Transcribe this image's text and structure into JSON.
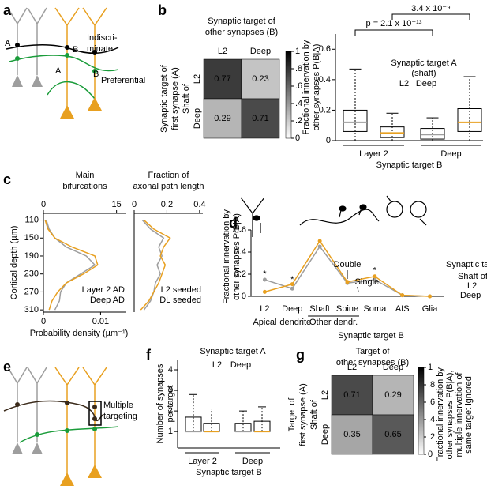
{
  "a": {
    "label": "a",
    "texts": [
      "A",
      "B",
      "Indiscri-",
      "minate",
      "A",
      "B",
      "Preferential"
    ]
  },
  "b": {
    "label": "b",
    "heatmap": {
      "type": "heatmap",
      "title": [
        "Synaptic target of",
        "other synapses (B)"
      ],
      "columns": [
        "L2",
        "Deep"
      ],
      "rows": [
        "L2",
        "Deep"
      ],
      "ylabel": [
        "Synaptic target of",
        "first synapse (A)",
        "Shaft of"
      ],
      "values": [
        [
          0.77,
          0.23
        ],
        [
          0.29,
          0.71
        ]
      ],
      "clim": [
        0,
        1
      ],
      "cticks": [
        0,
        {
          "value": 0.2,
          "label": ".2"
        },
        {
          "value": 0.4,
          "label": ".4"
        },
        {
          "value": 0.6,
          "label": ".6"
        },
        {
          "value": 0.8,
          "label": ".8"
        },
        1
      ]
    },
    "box": {
      "type": "box",
      "ylabel": [
        "Fractional innervation by",
        "other synapses P(B|A)"
      ],
      "xlabel": "Synaptic target B",
      "categories": [
        "Layer 2",
        "Deep"
      ],
      "legend_title": [
        "Synaptic target A",
        "(shaft)"
      ],
      "ylim": [
        0,
        0.7
      ],
      "yticks": [
        0,
        0.2,
        0.4,
        0.6
      ],
      "series": [
        {
          "name": "L2",
          "color": "#9e9e9e",
          "boxes": [
            {
              "low": 0,
              "q1": 0.06,
              "median": 0.12,
              "q3": 0.2,
              "high": 0.47
            },
            {
              "low": 0,
              "q1": 0.01,
              "median": 0.04,
              "q3": 0.08,
              "high": 0.15
            }
          ]
        },
        {
          "name": "Deep",
          "color": "#e8a020",
          "boxes": [
            {
              "low": 0,
              "q1": 0.02,
              "median": 0.05,
              "q3": 0.09,
              "high": 0.18
            },
            {
              "low": 0,
              "q1": 0.06,
              "median": 0.12,
              "q3": 0.21,
              "high": 0.42
            }
          ]
        }
      ],
      "annotations": [
        "p = 2.1 x 10⁻¹³",
        "3.4 x 10⁻⁹"
      ]
    }
  },
  "c": {
    "label": "c",
    "ylabel": "Cortical depth (µm)",
    "ylim": [
      95,
      315
    ],
    "yticks": [
      110,
      150,
      190,
      230,
      270,
      310
    ],
    "depths": [
      110,
      130,
      150,
      170,
      190,
      210,
      230,
      250,
      270,
      290,
      310
    ],
    "left": {
      "type": "line",
      "title": [
        "Main",
        "bifurcations"
      ],
      "xlabel": "Probability density (µm⁻¹)",
      "xlim": [
        0,
        0.0145
      ],
      "xticks": [
        0,
        0.01
      ],
      "x2lim": [
        0,
        17
      ],
      "x2ticks": [
        0,
        15
      ],
      "series": [
        {
          "name": "Layer 2 AD",
          "color": "#9e9e9e",
          "values": [
            0.0005,
            0.001,
            0.002,
            0.004,
            0.0075,
            0.009,
            0.0065,
            0.004,
            0.003,
            0.0028,
            0.002
          ]
        },
        {
          "name": "Deep AD",
          "color": "#e8a020",
          "values": [
            0.0003,
            0.0008,
            0.002,
            0.005,
            0.009,
            0.0095,
            0.007,
            0.004,
            0.0025,
            0.0015,
            0.001
          ]
        }
      ]
    },
    "right": {
      "type": "line",
      "title": [
        "Fraction of",
        "axonal path length"
      ],
      "xlim": [
        0,
        0.42
      ],
      "xticks": [
        0,
        0.2,
        0.4
      ],
      "series": [
        {
          "name": "L2 seeded",
          "color": "#9e9e9e",
          "values": [
            0.05,
            0.1,
            0.18,
            0.15,
            0.17,
            0.14,
            0.16,
            0.13,
            0.12,
            0.1,
            0.06
          ]
        },
        {
          "name": "DL seeded",
          "color": "#e8a020",
          "values": [
            0.06,
            0.12,
            0.22,
            0.18,
            0.16,
            0.19,
            0.17,
            0.15,
            0.12,
            0.09,
            0.04
          ]
        }
      ]
    }
  },
  "d": {
    "label": "d",
    "type": "line",
    "ylabel": [
      "Fractional innervation by",
      "other synapses P(B|A)"
    ],
    "xlabel": "Synaptic target B",
    "categories": [
      "L2",
      "Deep",
      "Shaft",
      "Spine",
      "Soma",
      "AIS",
      "Glia"
    ],
    "groups": [
      "Apical",
      "dendrite",
      "Other dendr."
    ],
    "ylim": [
      0,
      0.6
    ],
    "yticks": [
      0,
      0.2,
      0.4,
      0.6
    ],
    "annotations": [
      "Double",
      "Single",
      "*",
      "*",
      "*"
    ],
    "legend_title": [
      "Synaptic target (A):",
      "Shaft of"
    ],
    "series": [
      {
        "name": "L2",
        "color": "#9e9e9e",
        "values": [
          0.15,
          0.07,
          0.45,
          0.12,
          0.15,
          0.01,
          0
        ]
      },
      {
        "name": "Deep",
        "color": "#e8a020",
        "values": [
          0.04,
          0.11,
          0.5,
          0.13,
          0.18,
          0.01,
          0
        ]
      }
    ]
  },
  "e": {
    "label": "e",
    "texts": [
      "Multiple",
      "targeting"
    ]
  },
  "f": {
    "label": "f",
    "type": "box",
    "ylabel": [
      "Number of synapses",
      "per target"
    ],
    "xlabel": "Synaptic target B",
    "categories": [
      "Layer 2",
      "Deep"
    ],
    "legend_title": [
      "Synaptic target A"
    ],
    "ylim": [
      0.2,
      4.5
    ],
    "yticks": [
      1,
      2,
      3,
      4
    ],
    "series": [
      {
        "name": "L2",
        "color": "#9e9e9e",
        "boxes": [
          {
            "low": 1,
            "q1": 1,
            "median": 1,
            "q3": 1.7,
            "high": 2.8
          },
          {
            "low": 1,
            "q1": 1,
            "median": 1,
            "q3": 1.4,
            "high": 2
          }
        ]
      },
      {
        "name": "Deep",
        "color": "#e8a020",
        "boxes": [
          {
            "low": 1,
            "q1": 1,
            "median": 1,
            "q3": 1.4,
            "high": 2.1
          },
          {
            "low": 1,
            "q1": 1,
            "median": 1,
            "q3": 1.5,
            "high": 2.2
          }
        ]
      }
    ]
  },
  "g": {
    "label": "g",
    "type": "heatmap",
    "title": [
      "Target of",
      "other synapses (B)"
    ],
    "columns": [
      "L2",
      "Deep"
    ],
    "rows": [
      "L2",
      "Deep"
    ],
    "ylabel": [
      "Target of",
      "first synapse (A)",
      "Shaft of"
    ],
    "values": [
      [
        0.71,
        0.29
      ],
      [
        0.35,
        0.65
      ]
    ],
    "clim": [
      0,
      1
    ],
    "cticks": [
      0,
      {
        "value": 0.2,
        "label": ".2"
      },
      {
        "value": 0.4,
        "label": ".4"
      },
      {
        "value": 0.6,
        "label": ".6"
      },
      {
        "value": 0.8,
        "label": ".8"
      },
      1
    ],
    "clabel": [
      "Fractional innervation by",
      "other synapses P(B|A),",
      "multiple innervation of",
      "same target ignored"
    ]
  }
}
